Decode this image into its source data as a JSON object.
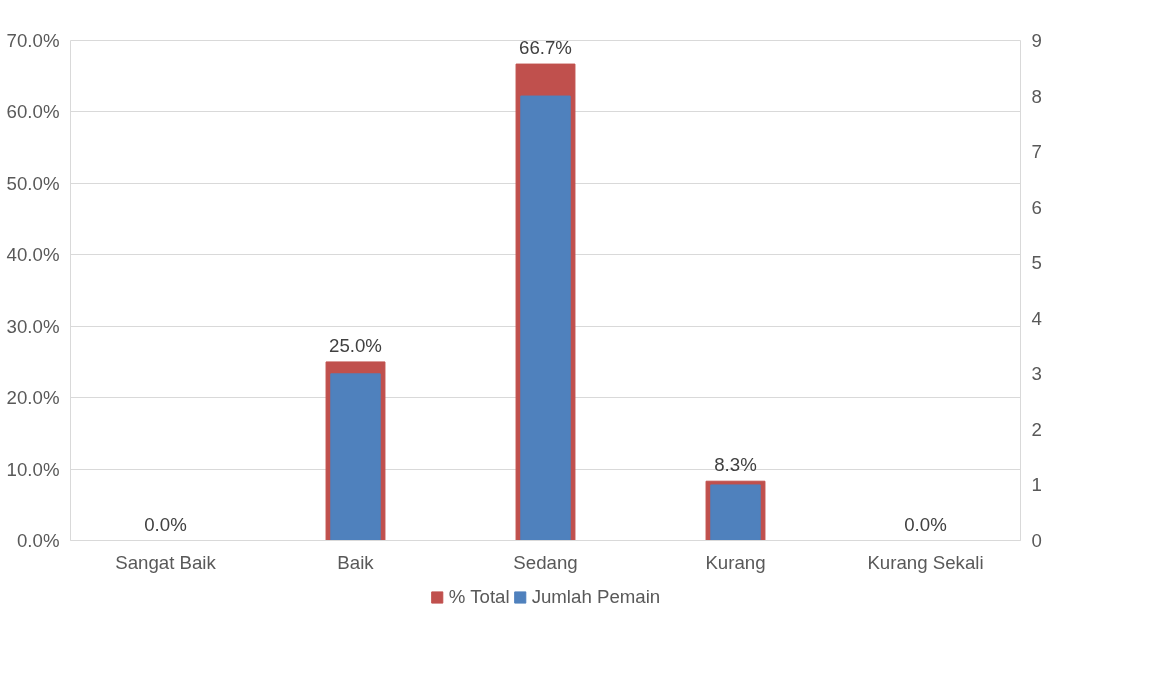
{
  "chart_data": {
    "type": "bar",
    "categories": [
      "Sangat Baik",
      "Baik",
      "Sedang",
      "Kurang",
      "Kurang Sekali"
    ],
    "series": [
      {
        "name": "% Total",
        "color": "#c0504d",
        "values": [
          0.0,
          25.0,
          66.7,
          8.3,
          0.0
        ],
        "value_labels": [
          "0.0%",
          "25.0%",
          "66.7%",
          "8.3%",
          "0.0%"
        ]
      },
      {
        "name": "Jumlah Pemain",
        "color": "#4f81bd",
        "values": [
          0,
          3,
          8,
          1,
          0
        ],
        "axis": "y2"
      }
    ],
    "ylim": [
      0,
      70
    ],
    "yticks": [
      {
        "value": 0,
        "label": "0.0%"
      },
      {
        "value": 10,
        "label": "10.0%"
      },
      {
        "value": 20,
        "label": "20.0%"
      },
      {
        "value": 30,
        "label": "30.0%"
      },
      {
        "value": 40,
        "label": "40.0%"
      },
      {
        "value": 50,
        "label": "50.0%"
      },
      {
        "value": 60,
        "label": "60.0%"
      },
      {
        "value": 70,
        "label": "70.0%"
      }
    ],
    "y2lim": [
      0,
      9
    ],
    "y2ticks": [
      0,
      1,
      2,
      3,
      4,
      5,
      6,
      7,
      8,
      9
    ],
    "grid": "y",
    "legend": "bottom"
  }
}
